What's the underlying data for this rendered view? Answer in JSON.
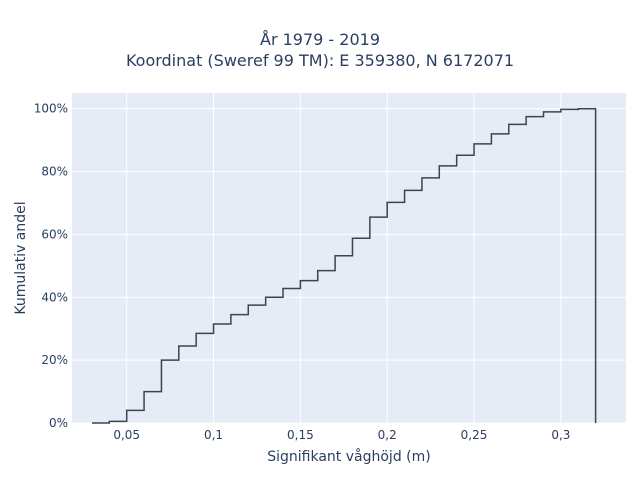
{
  "chart_data": {
    "type": "line",
    "step": true,
    "title_line1": "År 1979 - 2019",
    "title_line2": "Koordinat (Sweref 99 TM): E 359380, N 6172071",
    "xlabel": "Signifikant våghöjd (m)",
    "ylabel": "Kumulativ andel",
    "xlim": [
      0.0185,
      0.3375
    ],
    "ylim": [
      0,
      1.05
    ],
    "x_ticks": [
      0.05,
      0.1,
      0.15,
      0.2,
      0.25,
      0.3
    ],
    "x_tick_labels": [
      "0,05",
      "0,1",
      "0,15",
      "0,2",
      "0,25",
      "0,3"
    ],
    "y_ticks": [
      0,
      0.2,
      0.4,
      0.6,
      0.8,
      1.0
    ],
    "y_tick_labels": [
      "0%",
      "20%",
      "40%",
      "60%",
      "80%",
      "100%"
    ],
    "grid": true,
    "colors": {
      "plot_bg": "#e5ecf6",
      "grid": "#ffffff",
      "line": "#3d4450"
    },
    "series": [
      {
        "x": [
          0.03,
          0.04,
          0.05,
          0.06,
          0.07,
          0.08,
          0.09,
          0.1,
          0.11,
          0.12,
          0.13,
          0.14,
          0.15,
          0.16,
          0.17,
          0.18,
          0.19,
          0.2,
          0.21,
          0.22,
          0.23,
          0.24,
          0.25,
          0.26,
          0.27,
          0.28,
          0.29,
          0.3,
          0.31,
          0.32
        ],
        "y": [
          0.0,
          0.005,
          0.04,
          0.1,
          0.2,
          0.245,
          0.285,
          0.315,
          0.345,
          0.375,
          0.4,
          0.428,
          0.453,
          0.485,
          0.532,
          0.588,
          0.655,
          0.702,
          0.74,
          0.78,
          0.818,
          0.852,
          0.888,
          0.92,
          0.95,
          0.975,
          0.99,
          0.998,
          1.0,
          0.0
        ]
      }
    ]
  }
}
